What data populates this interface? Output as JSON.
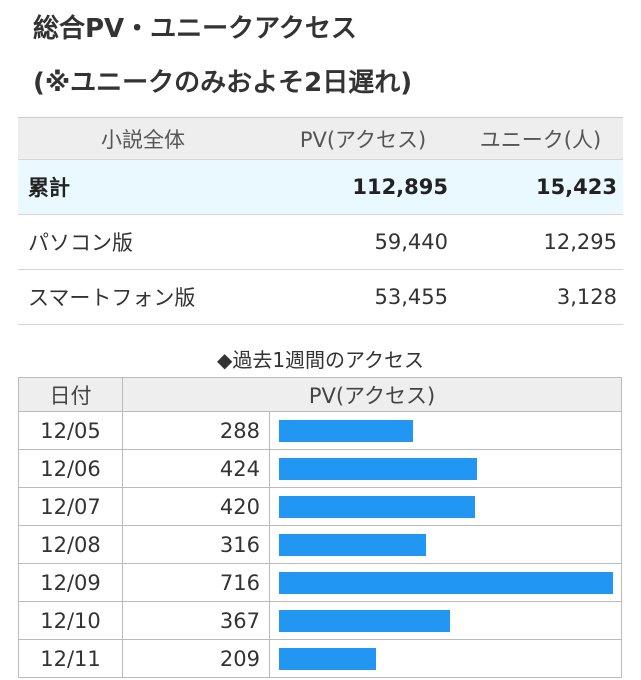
{
  "title": {
    "line1": "総合PV・ユニークアクセス",
    "line2": "(※ユニークのみおよそ2日遅れ)"
  },
  "summary": {
    "headers": [
      "小説全体",
      "PV(アクセス)",
      "ユニーク(人)"
    ],
    "rows": [
      [
        "累計",
        "112,895",
        "15,423"
      ],
      [
        "パソコン版",
        "59,440",
        "12,295"
      ],
      [
        "スマートフォン版",
        "53,455",
        "3,128"
      ]
    ]
  },
  "weekly": {
    "title": "◆過去1週間のアクセス",
    "headers": [
      "日付",
      "PV(アクセス)"
    ],
    "bar_color": "#2196f3",
    "rows": [
      {
        "date": "12/05",
        "pv": "288"
      },
      {
        "date": "12/06",
        "pv": "424"
      },
      {
        "date": "12/07",
        "pv": "420"
      },
      {
        "date": "12/08",
        "pv": "316"
      },
      {
        "date": "12/09",
        "pv": "716"
      },
      {
        "date": "12/10",
        "pv": "367"
      },
      {
        "date": "12/11",
        "pv": "209"
      }
    ]
  }
}
